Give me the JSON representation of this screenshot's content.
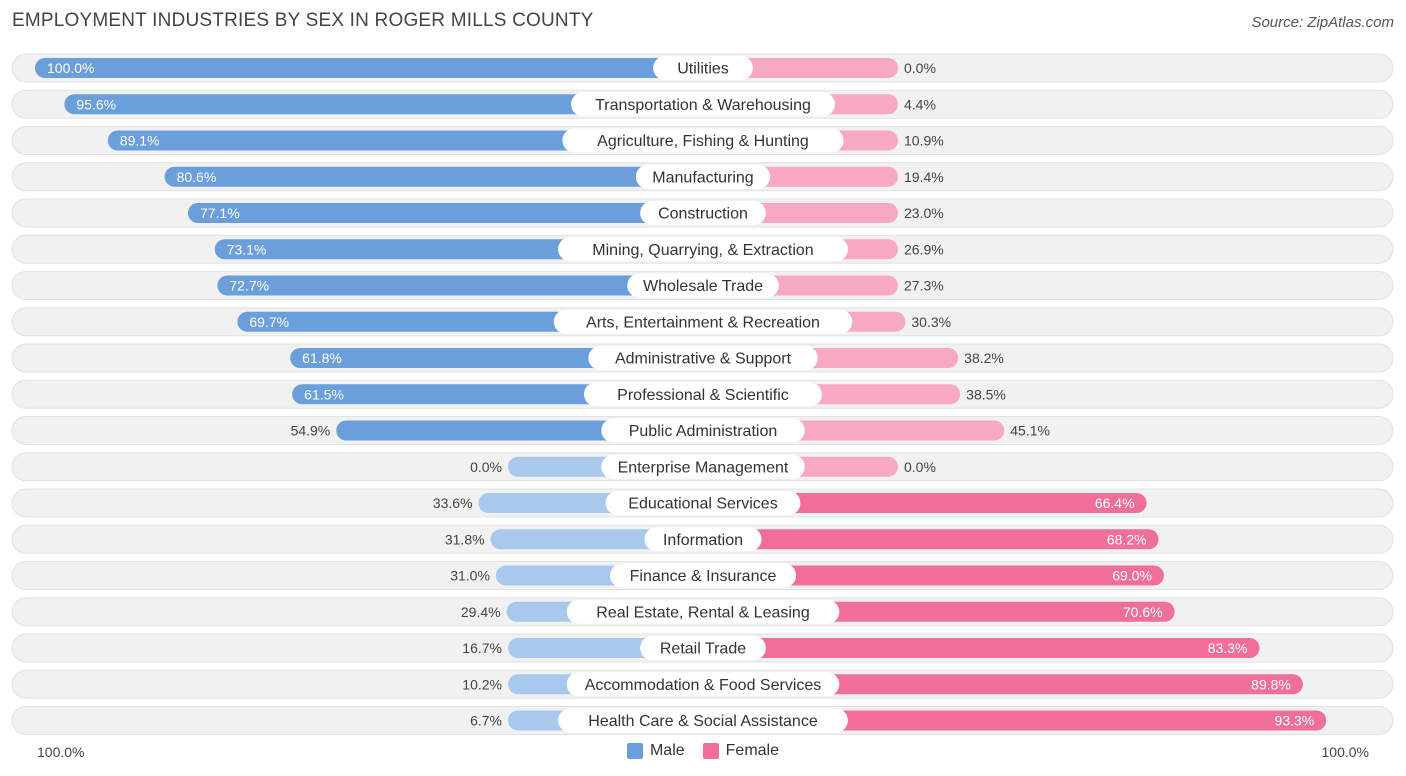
{
  "title": "EMPLOYMENT INDUSTRIES BY SEX IN ROGER MILLS COUNTY",
  "source": "Source: ZipAtlas.com",
  "axis": {
    "left_label": "100.0%",
    "right_label": "100.0%"
  },
  "legend": {
    "male": "Male",
    "female": "Female"
  },
  "colors": {
    "male_strong": "#6a9fdc",
    "male_light": "#a9c8ee",
    "female_strong": "#f06f99",
    "female_light": "#f7a9c2",
    "row_bg": "#eeeeee"
  },
  "chart_data": {
    "type": "bar",
    "orientation": "horizontal-diverging",
    "title": "EMPLOYMENT INDUSTRIES BY SEX IN ROGER MILLS COUNTY",
    "xlim": [
      0,
      100
    ],
    "categories": [
      "Utilities",
      "Transportation & Warehousing",
      "Agriculture, Fishing & Hunting",
      "Manufacturing",
      "Construction",
      "Mining, Quarrying, & Extraction",
      "Wholesale Trade",
      "Arts, Entertainment & Recreation",
      "Administrative & Support",
      "Professional & Scientific",
      "Public Administration",
      "Enterprise Management",
      "Educational Services",
      "Information",
      "Finance & Insurance",
      "Real Estate, Rental & Leasing",
      "Retail Trade",
      "Accommodation & Food Services",
      "Health Care & Social Assistance"
    ],
    "series": [
      {
        "name": "Male",
        "values": [
          100.0,
          95.6,
          89.1,
          80.6,
          77.1,
          73.1,
          72.7,
          69.7,
          61.8,
          61.5,
          54.9,
          0.0,
          33.6,
          31.8,
          31.0,
          29.4,
          16.7,
          10.2,
          6.7
        ],
        "labels": [
          "100.0%",
          "95.6%",
          "89.1%",
          "80.6%",
          "77.1%",
          "73.1%",
          "72.7%",
          "69.7%",
          "61.8%",
          "61.5%",
          "54.9%",
          "0.0%",
          "33.6%",
          "31.8%",
          "31.0%",
          "29.4%",
          "16.7%",
          "10.2%",
          "6.7%"
        ]
      },
      {
        "name": "Female",
        "values": [
          0.0,
          4.4,
          10.9,
          19.4,
          23.0,
          26.9,
          27.3,
          30.3,
          38.2,
          38.5,
          45.1,
          0.0,
          66.4,
          68.2,
          69.0,
          70.6,
          83.3,
          89.8,
          93.3
        ],
        "labels": [
          "0.0%",
          "4.4%",
          "10.9%",
          "19.4%",
          "23.0%",
          "26.9%",
          "27.3%",
          "30.3%",
          "38.2%",
          "38.5%",
          "45.1%",
          "0.0%",
          "66.4%",
          "68.2%",
          "69.0%",
          "70.6%",
          "83.3%",
          "89.8%",
          "93.3%"
        ]
      }
    ]
  }
}
